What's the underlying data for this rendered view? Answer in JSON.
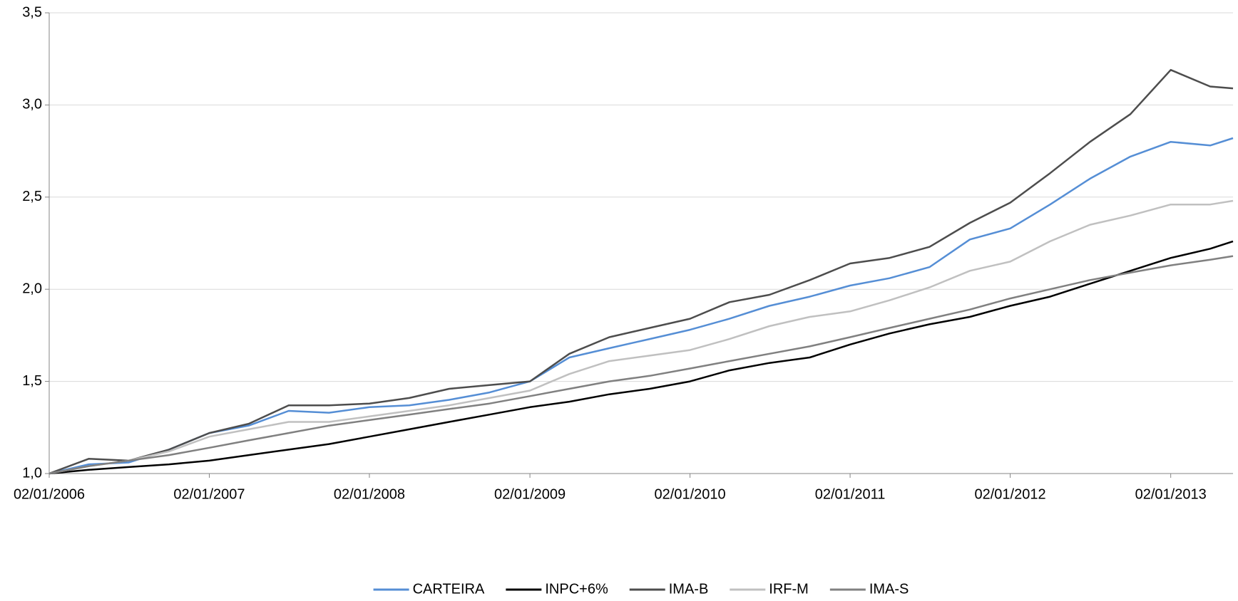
{
  "chart_data": {
    "type": "line",
    "x": [
      "2006-01-02",
      "2006-04-02",
      "2006-07-02",
      "2006-10-02",
      "2007-01-02",
      "2007-04-02",
      "2007-07-02",
      "2007-10-02",
      "2008-01-02",
      "2008-04-02",
      "2008-07-02",
      "2008-10-02",
      "2009-01-02",
      "2009-04-02",
      "2009-07-02",
      "2009-10-02",
      "2010-01-02",
      "2010-04-02",
      "2010-07-02",
      "2010-10-02",
      "2011-01-02",
      "2011-04-02",
      "2011-07-02",
      "2011-10-02",
      "2012-01-02",
      "2012-04-02",
      "2012-07-02",
      "2012-10-02",
      "2013-01-02",
      "2013-04-02",
      "2013-05-24"
    ],
    "series": [
      {
        "name": "CARTEIRA",
        "color": "#558ed5",
        "values": [
          1.0,
          1.05,
          1.06,
          1.13,
          1.22,
          1.26,
          1.34,
          1.33,
          1.36,
          1.37,
          1.4,
          1.44,
          1.5,
          1.63,
          1.68,
          1.73,
          1.78,
          1.84,
          1.91,
          1.96,
          2.02,
          2.06,
          2.12,
          2.27,
          2.33,
          2.46,
          2.6,
          2.72,
          2.8,
          2.78,
          2.82
        ]
      },
      {
        "name": "INPC+6%",
        "color": "#000000",
        "values": [
          1.0,
          1.02,
          1.035,
          1.05,
          1.07,
          1.1,
          1.13,
          1.16,
          1.2,
          1.24,
          1.28,
          1.32,
          1.36,
          1.39,
          1.43,
          1.46,
          1.5,
          1.56,
          1.6,
          1.63,
          1.7,
          1.76,
          1.81,
          1.85,
          1.91,
          1.96,
          2.03,
          2.1,
          2.17,
          2.22,
          2.26
        ]
      },
      {
        "name": "IMA-B",
        "color": "#4d4d4d",
        "values": [
          1.0,
          1.08,
          1.07,
          1.13,
          1.22,
          1.27,
          1.37,
          1.37,
          1.38,
          1.41,
          1.46,
          1.48,
          1.5,
          1.65,
          1.74,
          1.79,
          1.84,
          1.93,
          1.97,
          2.05,
          2.14,
          2.17,
          2.23,
          2.36,
          2.47,
          2.63,
          2.8,
          2.95,
          3.19,
          3.1,
          3.09
        ]
      },
      {
        "name": "IRF-M",
        "color": "#c0c0c0",
        "values": [
          1.0,
          1.04,
          1.07,
          1.12,
          1.2,
          1.24,
          1.28,
          1.28,
          1.31,
          1.34,
          1.37,
          1.41,
          1.45,
          1.54,
          1.61,
          1.64,
          1.67,
          1.73,
          1.8,
          1.85,
          1.88,
          1.94,
          2.01,
          2.1,
          2.15,
          2.26,
          2.35,
          2.4,
          2.46,
          2.46,
          2.48
        ]
      },
      {
        "name": "IMA-S",
        "color": "#808080",
        "values": [
          1.0,
          1.04,
          1.07,
          1.1,
          1.14,
          1.18,
          1.22,
          1.26,
          1.29,
          1.32,
          1.35,
          1.38,
          1.42,
          1.46,
          1.5,
          1.53,
          1.57,
          1.61,
          1.65,
          1.69,
          1.74,
          1.79,
          1.84,
          1.89,
          1.95,
          2.0,
          2.05,
          2.09,
          2.13,
          2.16,
          2.18
        ]
      }
    ],
    "xlim": [
      "2006-01-02",
      "2013-05-24"
    ],
    "xticks": [
      {
        "value": "2006-01-02",
        "label": "02/01/2006"
      },
      {
        "value": "2007-01-02",
        "label": "02/01/2007"
      },
      {
        "value": "2008-01-02",
        "label": "02/01/2008"
      },
      {
        "value": "2009-01-02",
        "label": "02/01/2009"
      },
      {
        "value": "2010-01-02",
        "label": "02/01/2010"
      },
      {
        "value": "2011-01-02",
        "label": "02/01/2011"
      },
      {
        "value": "2012-01-02",
        "label": "02/01/2012"
      },
      {
        "value": "2013-01-02",
        "label": "02/01/2013"
      }
    ],
    "ylim": [
      1,
      3.5
    ],
    "yticks": [
      {
        "value": 1,
        "label": "1,0"
      },
      {
        "value": 1.5,
        "label": "1,5"
      },
      {
        "value": 2,
        "label": "2,0"
      },
      {
        "value": 2.5,
        "label": "2,5"
      },
      {
        "value": 3,
        "label": "3,0"
      },
      {
        "value": 3.5,
        "label": "3,5"
      }
    ],
    "grid": true,
    "legend": "bottom"
  }
}
